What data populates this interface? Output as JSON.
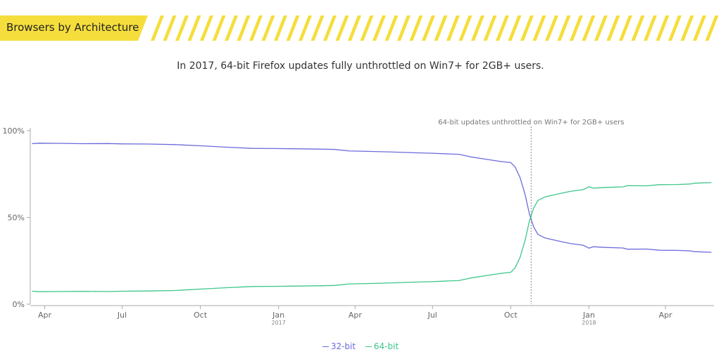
{
  "header": {
    "title": "Browsers by Architecture",
    "accent_color": "#f5de3c"
  },
  "subtitle": "In 2017, 64-bit Firefox updates fully unthrottled on Win7+ for 2GB+ users.",
  "chart_data": {
    "type": "line",
    "title": "",
    "xlabel": "",
    "ylabel": "",
    "ylim": [
      0,
      100
    ],
    "y_ticks": [
      {
        "value": 0,
        "label": "0%"
      },
      {
        "value": 50,
        "label": "50%"
      },
      {
        "value": 100,
        "label": "100%"
      }
    ],
    "x_range": [
      "2016-03-15",
      "2018-05-28"
    ],
    "x_ticks": [
      {
        "date": "2016-04-01",
        "label": "Apr",
        "sublabel": ""
      },
      {
        "date": "2016-07-01",
        "label": "Jul",
        "sublabel": ""
      },
      {
        "date": "2016-10-01",
        "label": "Oct",
        "sublabel": ""
      },
      {
        "date": "2017-01-01",
        "label": "Jan",
        "sublabel": "2017"
      },
      {
        "date": "2017-04-01",
        "label": "Apr",
        "sublabel": ""
      },
      {
        "date": "2017-07-01",
        "label": "Jul",
        "sublabel": ""
      },
      {
        "date": "2017-10-01",
        "label": "Oct",
        "sublabel": ""
      },
      {
        "date": "2018-01-01",
        "label": "Jan",
        "sublabel": "2018"
      },
      {
        "date": "2018-04-01",
        "label": "Apr",
        "sublabel": ""
      }
    ],
    "grid": false,
    "legend_position": "bottom",
    "annotation": {
      "date": "2017-10-25",
      "text": "64-bit updates unthrottled on Win7+ for 2GB+ users"
    },
    "series": [
      {
        "name": "32-bit",
        "color": "#6b6bdc",
        "points": [
          [
            "2016-03-17",
            92.5
          ],
          [
            "2016-03-25",
            92.8
          ],
          [
            "2016-04-15",
            92.7
          ],
          [
            "2016-05-15",
            92.5
          ],
          [
            "2016-06-15",
            92.6
          ],
          [
            "2016-07-01",
            92.4
          ],
          [
            "2016-08-01",
            92.3
          ],
          [
            "2016-09-01",
            92.0
          ],
          [
            "2016-10-01",
            91.3
          ],
          [
            "2016-11-01",
            90.5
          ],
          [
            "2016-12-01",
            89.8
          ],
          [
            "2016-12-25",
            89.7
          ],
          [
            "2017-01-15",
            89.6
          ],
          [
            "2017-02-15",
            89.4
          ],
          [
            "2017-03-08",
            89.2
          ],
          [
            "2017-03-25",
            88.3
          ],
          [
            "2017-04-15",
            88.1
          ],
          [
            "2017-05-15",
            87.7
          ],
          [
            "2017-06-15",
            87.2
          ],
          [
            "2017-07-01",
            87.0
          ],
          [
            "2017-07-20",
            86.6
          ],
          [
            "2017-08-01",
            86.4
          ],
          [
            "2017-08-15",
            84.9
          ],
          [
            "2017-09-01",
            83.6
          ],
          [
            "2017-09-20",
            82.2
          ],
          [
            "2017-10-01",
            81.6
          ],
          [
            "2017-10-06",
            79.2
          ],
          [
            "2017-10-12",
            73.0
          ],
          [
            "2017-10-18",
            63.0
          ],
          [
            "2017-10-23",
            52.0
          ],
          [
            "2017-10-28",
            44.5
          ],
          [
            "2017-11-02",
            40.2
          ],
          [
            "2017-11-10",
            38.2
          ],
          [
            "2017-11-25",
            36.5
          ],
          [
            "2017-12-10",
            35.0
          ],
          [
            "2017-12-25",
            34.0
          ],
          [
            "2018-01-01",
            32.3
          ],
          [
            "2018-01-06",
            33.1
          ],
          [
            "2018-01-20",
            32.7
          ],
          [
            "2018-02-10",
            32.4
          ],
          [
            "2018-02-15",
            31.7
          ],
          [
            "2018-03-10",
            31.8
          ],
          [
            "2018-03-25",
            31.1
          ],
          [
            "2018-04-15",
            31.0
          ],
          [
            "2018-05-01",
            30.7
          ],
          [
            "2018-05-05",
            30.3
          ],
          [
            "2018-05-25",
            29.9
          ]
        ]
      },
      {
        "name": "64-bit",
        "color": "#3cc68a",
        "points": [
          [
            "2016-03-17",
            7.5
          ],
          [
            "2016-03-25",
            7.2
          ],
          [
            "2016-04-15",
            7.3
          ],
          [
            "2016-05-15",
            7.4
          ],
          [
            "2016-06-15",
            7.3
          ],
          [
            "2016-07-01",
            7.5
          ],
          [
            "2016-08-01",
            7.6
          ],
          [
            "2016-09-01",
            7.9
          ],
          [
            "2016-10-01",
            8.7
          ],
          [
            "2016-11-01",
            9.5
          ],
          [
            "2016-12-01",
            10.2
          ],
          [
            "2016-12-25",
            10.3
          ],
          [
            "2017-01-15",
            10.4
          ],
          [
            "2017-02-15",
            10.6
          ],
          [
            "2017-03-08",
            10.8
          ],
          [
            "2017-03-25",
            11.7
          ],
          [
            "2017-04-15",
            11.9
          ],
          [
            "2017-05-15",
            12.3
          ],
          [
            "2017-06-15",
            12.8
          ],
          [
            "2017-07-01",
            13.0
          ],
          [
            "2017-07-20",
            13.4
          ],
          [
            "2017-08-01",
            13.6
          ],
          [
            "2017-08-15",
            15.1
          ],
          [
            "2017-09-01",
            16.4
          ],
          [
            "2017-09-20",
            17.8
          ],
          [
            "2017-10-01",
            18.4
          ],
          [
            "2017-10-06",
            20.8
          ],
          [
            "2017-10-12",
            27.0
          ],
          [
            "2017-10-18",
            37.0
          ],
          [
            "2017-10-23",
            48.0
          ],
          [
            "2017-10-28",
            55.5
          ],
          [
            "2017-11-02",
            59.8
          ],
          [
            "2017-11-10",
            61.8
          ],
          [
            "2017-11-25",
            63.5
          ],
          [
            "2017-12-10",
            65.0
          ],
          [
            "2017-12-25",
            66.0
          ],
          [
            "2018-01-01",
            67.7
          ],
          [
            "2018-01-06",
            66.9
          ],
          [
            "2018-01-20",
            67.3
          ],
          [
            "2018-02-10",
            67.6
          ],
          [
            "2018-02-15",
            68.3
          ],
          [
            "2018-03-10",
            68.2
          ],
          [
            "2018-03-25",
            68.9
          ],
          [
            "2018-04-15",
            69.0
          ],
          [
            "2018-05-01",
            69.3
          ],
          [
            "2018-05-05",
            69.7
          ],
          [
            "2018-05-25",
            70.1
          ]
        ]
      }
    ]
  }
}
